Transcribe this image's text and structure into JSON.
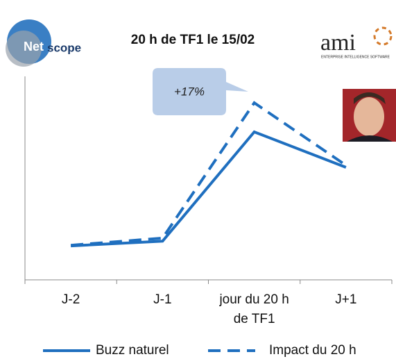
{
  "header": {
    "logo_left": {
      "part1": "Net",
      "part2": "scope"
    },
    "logo_right": {
      "name": "ami",
      "tagline": "ENTERPRISE INTELLIGENCE SOFTWARE"
    }
  },
  "chart_data": {
    "type": "line",
    "title": "20 h de TF1 le 15/02",
    "categories": [
      "J-2",
      "J-1",
      "jour du 20 h de TF1",
      "J+1"
    ],
    "series": [
      {
        "name": "Buzz naturel",
        "color": "#1f6fbf",
        "dash": false,
        "values": [
          16.7,
          19,
          72.7,
          55.3
        ]
      },
      {
        "name": "Impact du 20 h",
        "color": "#1f6fbf",
        "dash": true,
        "values": [
          17,
          20.5,
          87,
          56.3
        ]
      }
    ],
    "ylim": [
      0,
      100
    ],
    "annotation": "+17%"
  }
}
